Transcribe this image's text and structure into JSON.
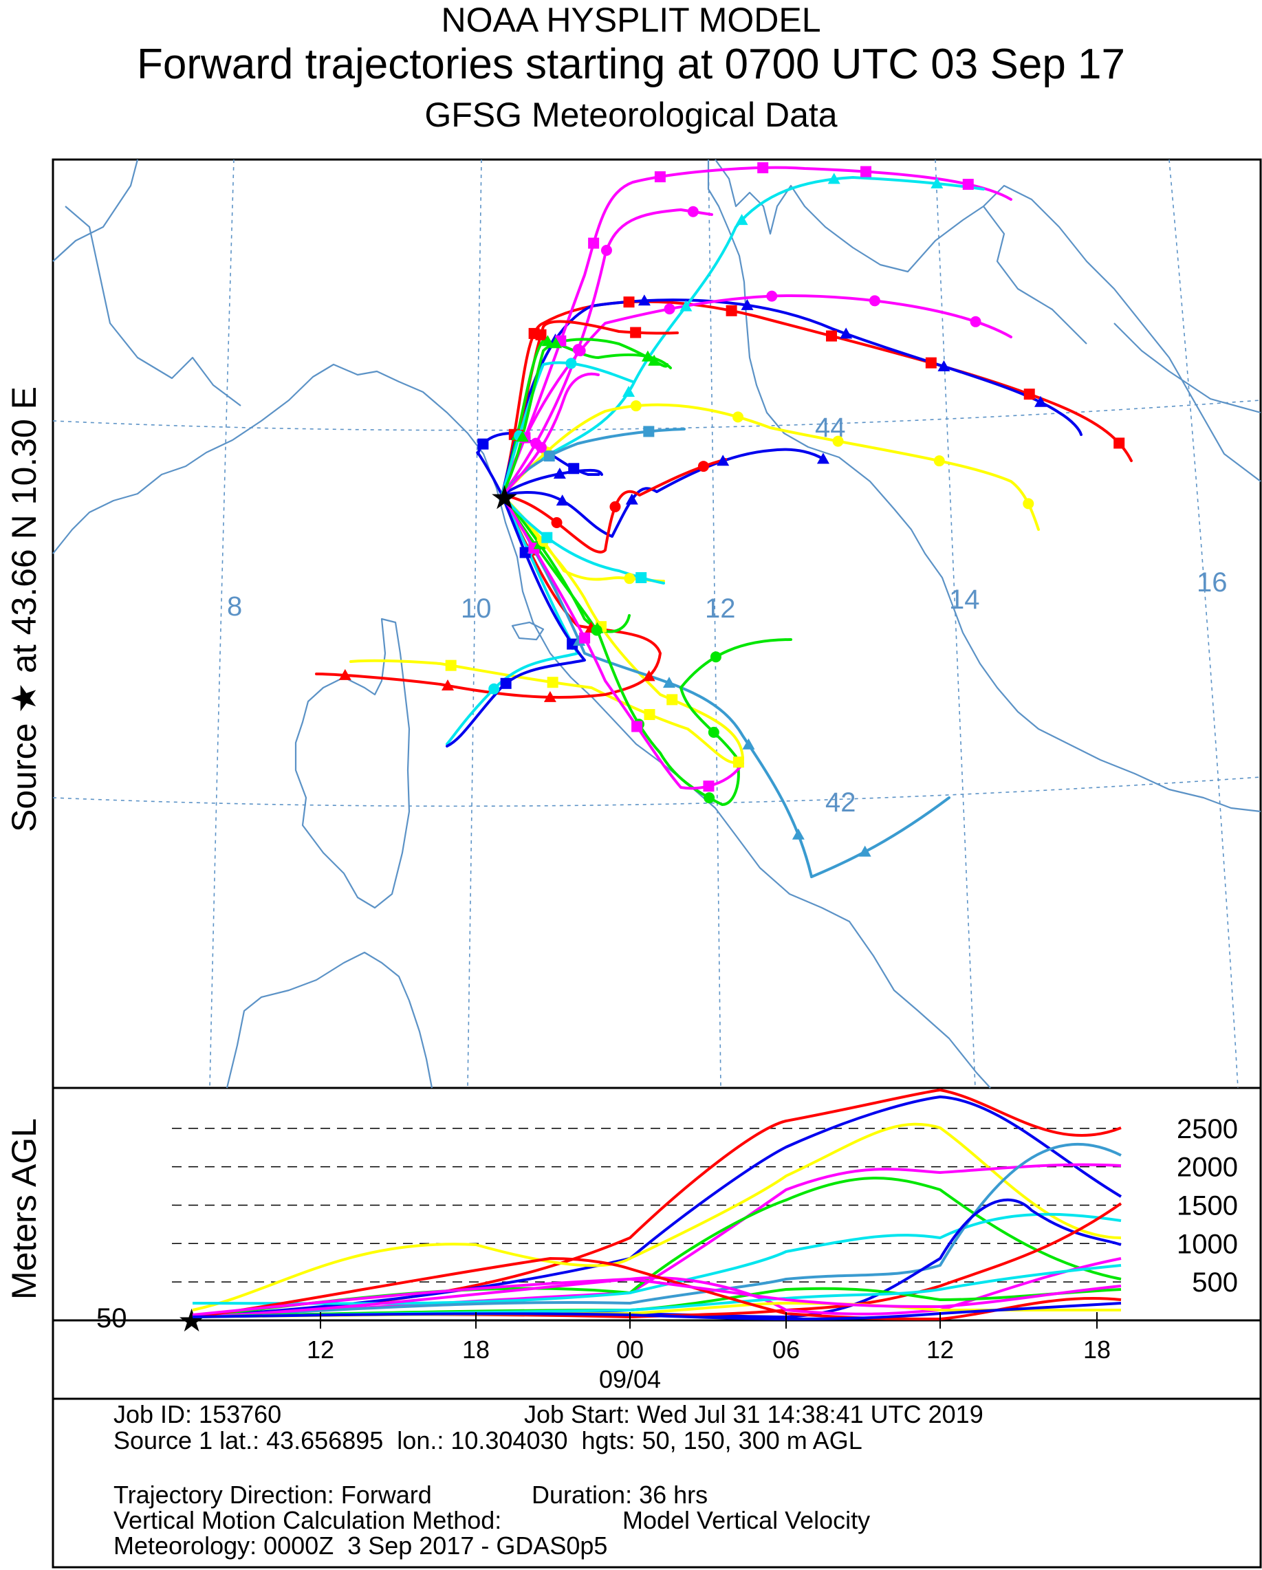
{
  "header": {
    "line1": "NOAA HYSPLIT MODEL",
    "line2": "Forward trajectories starting at 0700 UTC 03 Sep 17",
    "line3": "GFSG Meteorological Data"
  },
  "side_label": "Source ★  at    43.66 N    10.30 E",
  "colors": {
    "coast": "#5b92c6",
    "grid": "#5b92c6",
    "red": "#ff0000",
    "blue": "#0000ee",
    "green": "#00e600",
    "magenta": "#ff00ff",
    "cyan": "#00e5ee",
    "yellow": "#ffff00",
    "steelblue": "#3a9bd0"
  },
  "chart_data": [
    {
      "type": "map",
      "name": "trajectory-map",
      "source": {
        "lat": 43.656895,
        "lon": 10.30403
      },
      "longitude_labels": [
        "8",
        "10",
        "12",
        "14",
        "16"
      ],
      "latitude_labels": [
        "44",
        "42"
      ],
      "trajectory_count": 27
    },
    {
      "type": "line",
      "name": "height-profile",
      "ylabel": "Meters AGL",
      "x_tick_labels": [
        "12",
        "18",
        "00",
        "06",
        "12",
        "18"
      ],
      "x_date_label": "09/04",
      "y_tick_labels": [
        "2500",
        "2000",
        "1500",
        "1000",
        "500"
      ],
      "y_ticks": [
        2500,
        2000,
        1500,
        1000,
        500
      ],
      "start_height_label": "50",
      "ylim": [
        0,
        3000
      ]
    }
  ],
  "info": {
    "job_id": "Job ID: 153760",
    "job_start": "Job Start: Wed Jul 31 14:38:41 UTC 2019",
    "source_line": "Source 1 lat.: 43.656895  lon.: 10.304030  hgts: 50, 150, 300 m AGL",
    "direction": "Trajectory Direction: Forward",
    "duration": "Duration: 36 hrs",
    "vertical_label": "Vertical Motion Calculation Method:",
    "vertical_value": "Model Vertical Velocity",
    "meteorology": "Meteorology: 0000Z  3 Sep 2017 - GDAS0p5"
  }
}
